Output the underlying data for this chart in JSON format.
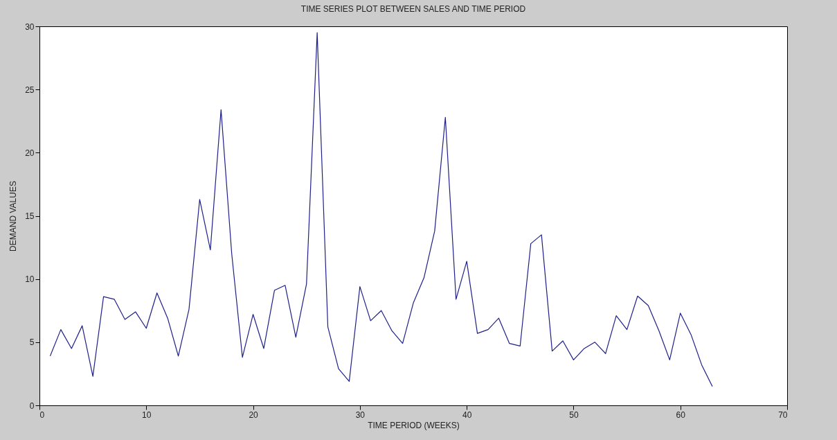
{
  "chart_data": {
    "type": "line",
    "title": "TIME SERIES PLOT BETWEEN SALES AND TIME PERIOD",
    "xlabel": "TIME PERIOD (WEEKS)",
    "ylabel": "DEMAND VALUES",
    "x": [
      1,
      2,
      3,
      4,
      5,
      6,
      7,
      8,
      9,
      10,
      11,
      12,
      13,
      14,
      15,
      16,
      17,
      18,
      19,
      20,
      21,
      22,
      23,
      24,
      25,
      26,
      27,
      28,
      29,
      30,
      31,
      32,
      33,
      34,
      35,
      36,
      37,
      38,
      39,
      40,
      41,
      42,
      43,
      44,
      45,
      46,
      47,
      48,
      49,
      50,
      51,
      52,
      53,
      54,
      55,
      56,
      57,
      58,
      59,
      60,
      61,
      62,
      63
    ],
    "series": [
      {
        "color": "#1f1f8a",
        "values": [
          3.9,
          6.0,
          4.5,
          6.3,
          2.3,
          8.6,
          8.4,
          6.8,
          7.4,
          6.1,
          8.9,
          6.9,
          3.9,
          7.6,
          16.3,
          12.3,
          23.4,
          12.0,
          3.8,
          7.2,
          4.5,
          9.1,
          9.5,
          5.4,
          9.6,
          29.5,
          6.2,
          2.9,
          1.9,
          9.4,
          6.7,
          7.5,
          5.9,
          4.9,
          8.1,
          10.1,
          13.8,
          22.8,
          8.4,
          11.4,
          5.7,
          6.0,
          6.9,
          4.9,
          4.7,
          12.8,
          13.5,
          4.3,
          5.1,
          3.6,
          4.5,
          5.0,
          4.1,
          7.1,
          6.0,
          8.65,
          7.9,
          5.9,
          3.6,
          7.3,
          5.6,
          3.2,
          1.5
        ]
      }
    ],
    "xlim": [
      0,
      70
    ],
    "xticks": [
      0,
      10,
      20,
      30,
      40,
      50,
      60,
      70
    ],
    "ylim": [
      0,
      30
    ],
    "yticks": [
      0,
      5,
      10,
      15,
      20,
      25,
      30
    ],
    "grid": false,
    "legend": false,
    "marker": "none",
    "line_style": "solid"
  }
}
